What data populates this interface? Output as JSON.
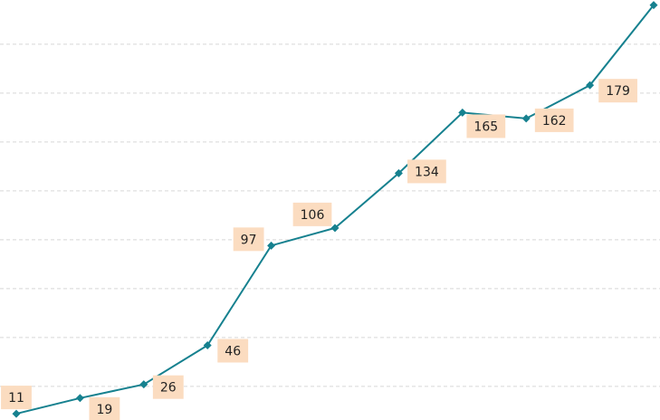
{
  "chart_data": {
    "type": "line",
    "categories": [
      null,
      null,
      null,
      null,
      null,
      null,
      null,
      null,
      null,
      null,
      null
    ],
    "values": [
      11,
      19,
      26,
      46,
      97,
      106,
      134,
      165,
      162,
      179,
      220
    ],
    "value_labels": [
      "11",
      "19",
      "26",
      "46",
      "97",
      "106",
      "134",
      "165",
      "162",
      "179",
      null
    ],
    "color": "#16818f",
    "label_color": "#fbdcc0",
    "ylim": [
      7.8,
      222.6
    ],
    "yticks": [
      25,
      50,
      75,
      100,
      125,
      150,
      175,
      200
    ],
    "grid": true
  }
}
